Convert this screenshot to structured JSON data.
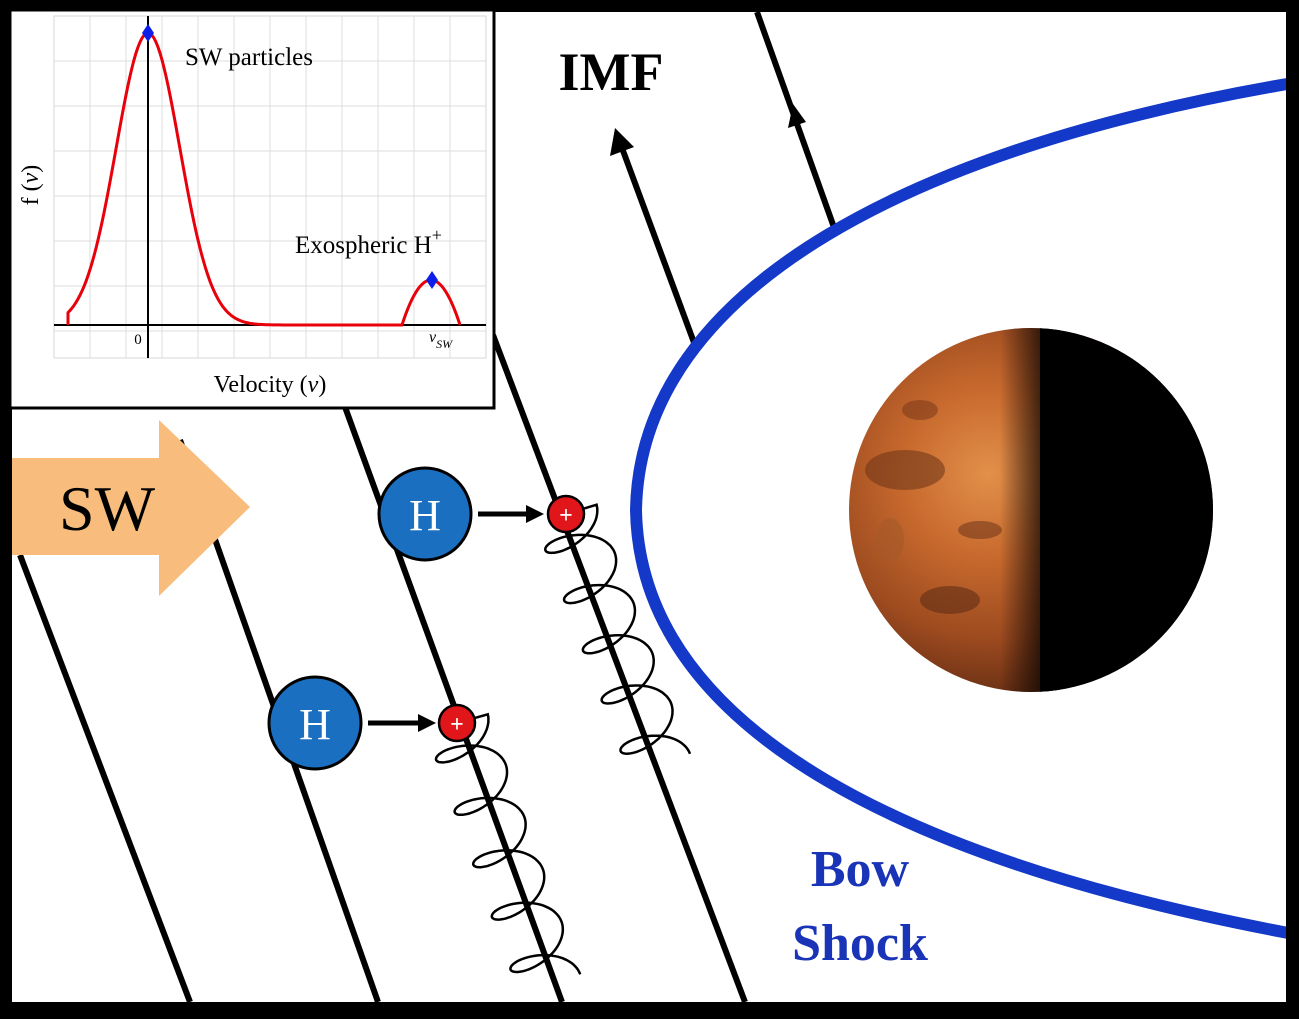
{
  "diagram": {
    "imf_label": "IMF",
    "sw_label": "SW",
    "bow_shock_line1": "Bow",
    "bow_shock_line2": "Shock",
    "neutral_label": "H",
    "ion_label": "+",
    "colors": {
      "bow_shock": "#1438c8",
      "bow_label": "#1a34b8",
      "sw_arrow": "#f8bd7c",
      "neutral": "#1b6fc0",
      "ion": "#e0161a",
      "field_line": "#000000"
    }
  },
  "inset_chart": {
    "ylabel_main": "f (",
    "ylabel_var": "v",
    "ylabel_close": ")",
    "xlabel_main": "Velocity (",
    "xlabel_var": "v",
    "xlabel_close": ")",
    "tick_zero": "0",
    "tick_vsw_main": "v",
    "tick_vsw_sub": "SW",
    "peak1_label": "SW particles",
    "peak2_label": "Exospheric H",
    "peak2_sup": "+",
    "curve_color": "#e8000b",
    "marker_color": "#0d1ee8"
  }
}
